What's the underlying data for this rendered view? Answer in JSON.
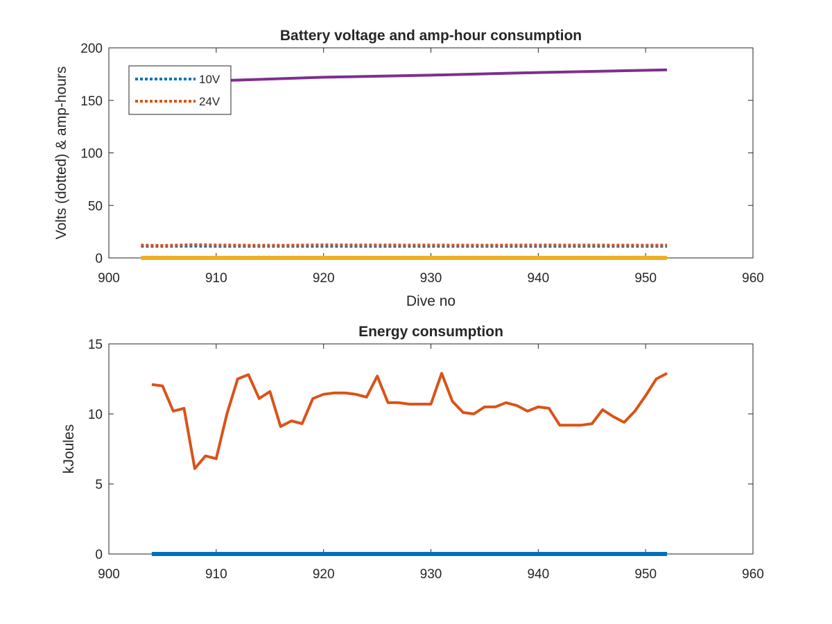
{
  "chart_data": [
    {
      "type": "line",
      "title": "Battery voltage and amp-hour consumption",
      "xlabel": "Dive no",
      "ylabel": "Volts (dotted) & amp-hours",
      "xlim": [
        900,
        960
      ],
      "ylim": [
        0,
        200
      ],
      "xticks": [
        "900",
        "910",
        "920",
        "930",
        "940",
        "950",
        "960"
      ],
      "yticks": [
        "0",
        "50",
        "100",
        "150",
        "200"
      ],
      "legend_position": "top-left",
      "series": [
        {
          "name": "10V",
          "style": "dotted",
          "color": "#0072BD",
          "x": [
            903,
            905,
            908,
            910,
            913,
            916,
            920,
            925,
            930,
            935,
            940,
            945,
            950,
            952
          ],
          "y": [
            11.0,
            11.0,
            11.2,
            11.1,
            11.0,
            11.0,
            11.1,
            11.0,
            11.0,
            11.1,
            11.0,
            11.0,
            11.0,
            11.0
          ]
        },
        {
          "name": "24V",
          "style": "dotted",
          "color": "#D95319",
          "x": [
            903,
            905,
            908,
            910,
            913,
            916,
            920,
            925,
            930,
            935,
            940,
            945,
            950,
            952
          ],
          "y": [
            12.2,
            11.8,
            12.6,
            12.3,
            12.1,
            12.0,
            12.4,
            12.3,
            12.2,
            12.1,
            12.3,
            12.2,
            12.1,
            12.2
          ]
        },
        {
          "style": "solid",
          "color": "#EDB120",
          "x": [
            903,
            952
          ],
          "y": [
            0,
            0
          ]
        },
        {
          "style": "solid",
          "color": "#7E2F8E",
          "x": [
            911,
            920,
            930,
            940,
            952
          ],
          "y": [
            169,
            172,
            174,
            176.5,
            179
          ]
        }
      ]
    },
    {
      "type": "line",
      "title": "Energy consumption",
      "xlabel": "",
      "ylabel": "kJoules",
      "xlim": [
        900,
        960
      ],
      "ylim": [
        0,
        15
      ],
      "xticks": [
        "900",
        "910",
        "920",
        "930",
        "940",
        "950",
        "960"
      ],
      "yticks": [
        "0",
        "5",
        "10",
        "15"
      ],
      "series": [
        {
          "style": "solid",
          "color": "#0072BD",
          "x": [
            904,
            952
          ],
          "y": [
            0,
            0
          ]
        },
        {
          "style": "solid",
          "color": "#D95319",
          "x": [
            904,
            905,
            906,
            907,
            908,
            909,
            910,
            911,
            912,
            913,
            914,
            915,
            916,
            917,
            918,
            919,
            920,
            921,
            922,
            923,
            924,
            925,
            926,
            927,
            928,
            929,
            930,
            931,
            932,
            933,
            934,
            935,
            936,
            937,
            938,
            939,
            940,
            941,
            942,
            943,
            944,
            945,
            946,
            947,
            948,
            949,
            950,
            951,
            952
          ],
          "y": [
            12.1,
            12.0,
            10.2,
            10.4,
            6.1,
            7.0,
            6.8,
            10.0,
            12.5,
            12.8,
            11.1,
            11.6,
            9.1,
            9.5,
            9.3,
            11.1,
            11.4,
            11.5,
            11.5,
            11.4,
            11.2,
            12.7,
            10.8,
            10.8,
            10.7,
            10.7,
            10.7,
            12.9,
            10.9,
            10.1,
            10.0,
            10.5,
            10.5,
            10.8,
            10.6,
            10.2,
            10.5,
            10.4,
            9.2,
            9.2,
            9.2,
            9.3,
            10.3,
            9.8,
            9.4,
            10.2,
            11.3,
            12.5,
            12.9
          ]
        }
      ]
    }
  ]
}
